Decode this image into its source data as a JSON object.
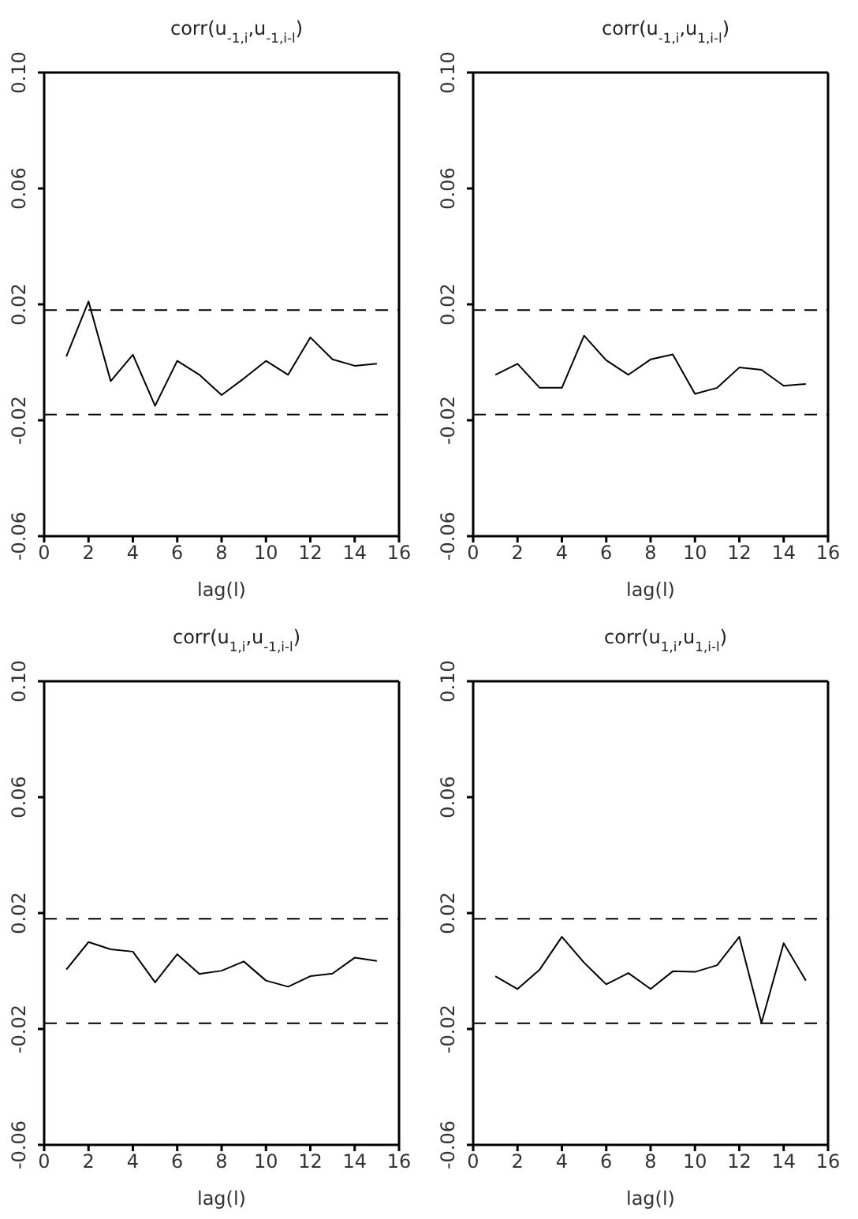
{
  "chart_data": [
    {
      "type": "line",
      "title": "corr(u$_{-1,i}$,u$_{-1,i-l}$)",
      "xlabel": "lag(l)",
      "x": [
        1,
        2,
        3,
        4,
        5,
        6,
        7,
        8,
        9,
        10,
        11,
        12,
        13,
        14,
        15
      ],
      "values": [
        0.002,
        0.021,
        -0.0065,
        0.0026,
        -0.015,
        0.0005,
        -0.0043,
        -0.0113,
        -0.0056,
        0.0005,
        -0.0043,
        0.0086,
        0.001,
        -0.0012,
        -0.0005
      ],
      "color": "#000000",
      "xlim": [
        0,
        16
      ],
      "xticks": [
        0,
        2,
        4,
        6,
        8,
        10,
        12,
        14,
        16
      ],
      "ylim": [
        -0.06,
        0.1
      ],
      "yticks": [
        {
          "value": -0.06,
          "label": "-0.06"
        },
        {
          "value": -0.02,
          "label": "-0.02"
        },
        {
          "value": 0.02,
          "label": "0.02"
        },
        {
          "value": 0.06,
          "label": "0.06"
        },
        {
          "value": 0.1,
          "label": "0.10"
        }
      ],
      "ref_lines": [
        {
          "axis": "y",
          "value": 0.018,
          "line_style": "dashed",
          "color": "#000000"
        },
        {
          "axis": "y",
          "value": -0.018,
          "line_style": "dashed",
          "color": "#000000"
        }
      ],
      "grid": false,
      "legend": false,
      "marker": "none",
      "line_style": "solid"
    },
    {
      "type": "line",
      "title": "corr(u$_{-1,i}$,u$_{1,i-l}$)",
      "xlabel": "lag(l)",
      "x": [
        1,
        2,
        3,
        4,
        5,
        6,
        7,
        8,
        9,
        10,
        11,
        12,
        13,
        14,
        15
      ],
      "values": [
        -0.0043,
        -0.0005,
        -0.0088,
        -0.0088,
        0.0092,
        0.0007,
        -0.0043,
        0.001,
        0.0027,
        -0.0109,
        -0.0088,
        -0.0018,
        -0.0026,
        -0.0081,
        -0.0075
      ],
      "color": "#000000",
      "xlim": [
        0,
        16
      ],
      "xticks": [
        0,
        2,
        4,
        6,
        8,
        10,
        12,
        14,
        16
      ],
      "ylim": [
        -0.06,
        0.1
      ],
      "yticks": [
        {
          "value": -0.06,
          "label": "-0.06"
        },
        {
          "value": -0.02,
          "label": "-0.02"
        },
        {
          "value": 0.02,
          "label": "0.02"
        },
        {
          "value": 0.06,
          "label": "0.06"
        },
        {
          "value": 0.1,
          "label": "0.10"
        }
      ],
      "ref_lines": [
        {
          "axis": "y",
          "value": 0.018,
          "line_style": "dashed",
          "color": "#000000"
        },
        {
          "axis": "y",
          "value": -0.018,
          "line_style": "dashed",
          "color": "#000000"
        }
      ],
      "grid": false,
      "legend": false,
      "marker": "none",
      "line_style": "solid"
    },
    {
      "type": "line",
      "title": "corr(u$_{1,i}$,u$_{-1,i-l}$)",
      "xlabel": "lag(l)",
      "x": [
        1,
        2,
        3,
        4,
        5,
        6,
        7,
        8,
        9,
        10,
        11,
        12,
        13,
        14,
        15
      ],
      "values": [
        0.0005,
        0.01,
        0.0075,
        0.0067,
        -0.0039,
        0.0058,
        -0.001,
        0.0001,
        0.0033,
        -0.0033,
        -0.0054,
        -0.0018,
        -0.0009,
        0.0046,
        0.0035
      ],
      "color": "#000000",
      "xlim": [
        0,
        16
      ],
      "xticks": [
        0,
        2,
        4,
        6,
        8,
        10,
        12,
        14,
        16
      ],
      "ylim": [
        -0.06,
        0.1
      ],
      "yticks": [
        {
          "value": -0.06,
          "label": "-0.06"
        },
        {
          "value": -0.02,
          "label": "-0.02"
        },
        {
          "value": 0.02,
          "label": "0.02"
        },
        {
          "value": 0.06,
          "label": "0.06"
        },
        {
          "value": 0.1,
          "label": "0.10"
        }
      ],
      "ref_lines": [
        {
          "axis": "y",
          "value": 0.018,
          "line_style": "dashed",
          "color": "#000000"
        },
        {
          "axis": "y",
          "value": -0.018,
          "line_style": "dashed",
          "color": "#000000"
        }
      ],
      "grid": false,
      "legend": false,
      "marker": "none",
      "line_style": "solid"
    },
    {
      "type": "line",
      "title": "corr(u$_{1,i}$,u$_{1,i-l}$)",
      "xlabel": "lag(l)",
      "x": [
        1,
        2,
        3,
        4,
        5,
        6,
        7,
        8,
        9,
        10,
        11,
        12,
        13,
        14,
        15
      ],
      "values": [
        -0.0018,
        -0.0062,
        0.0005,
        0.0118,
        0.0029,
        -0.0046,
        -0.0007,
        -0.0062,
        -0.0001,
        -0.0003,
        0.002,
        0.0118,
        -0.0179,
        0.0096,
        -0.0033
      ],
      "color": "#000000",
      "xlim": [
        0,
        16
      ],
      "xticks": [
        0,
        2,
        4,
        6,
        8,
        10,
        12,
        14,
        16
      ],
      "ylim": [
        -0.06,
        0.1
      ],
      "yticks": [
        {
          "value": -0.06,
          "label": "-0.06"
        },
        {
          "value": -0.02,
          "label": "-0.02"
        },
        {
          "value": 0.02,
          "label": "0.02"
        },
        {
          "value": 0.06,
          "label": "0.06"
        },
        {
          "value": 0.1,
          "label": "0.10"
        }
      ],
      "ref_lines": [
        {
          "axis": "y",
          "value": 0.018,
          "line_style": "dashed",
          "color": "#000000"
        },
        {
          "axis": "y",
          "value": -0.018,
          "line_style": "dashed",
          "color": "#000000"
        }
      ],
      "grid": false,
      "legend": false,
      "marker": "none",
      "line_style": "solid"
    }
  ]
}
